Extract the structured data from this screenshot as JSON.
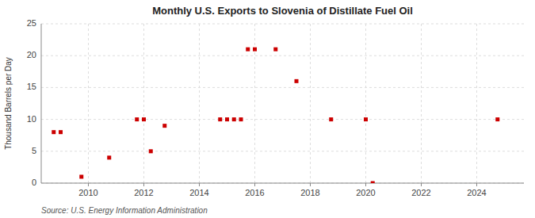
{
  "chart_data": {
    "type": "scatter",
    "title": "Monthly U.S. Exports to Slovenia of Distillate Fuel Oil",
    "ylabel": "Thousand Barrels per Day",
    "source": "Source: U.S. Energy Information Administration",
    "color": "#cc0000",
    "marker": "square",
    "grid": true,
    "xlim": [
      2008.3,
      2025.7
    ],
    "ylim": [
      0,
      25
    ],
    "xticks": [
      2010,
      2012,
      2014,
      2016,
      2018,
      2020,
      2022,
      2024
    ],
    "yticks": [
      0,
      5,
      10,
      15,
      20,
      25
    ],
    "x": [
      2008.75,
      2009.0,
      2009.75,
      2010.75,
      2011.75,
      2012.0,
      2012.25,
      2012.75,
      2014.75,
      2015.0,
      2015.25,
      2015.5,
      2015.75,
      2016.0,
      2016.75,
      2017.5,
      2018.75,
      2020.0,
      2020.25,
      2024.75
    ],
    "values": [
      8,
      8,
      1,
      4,
      10,
      10,
      5,
      9,
      10,
      10,
      10,
      10,
      21,
      21,
      21,
      16,
      10,
      10,
      0,
      10
    ]
  }
}
